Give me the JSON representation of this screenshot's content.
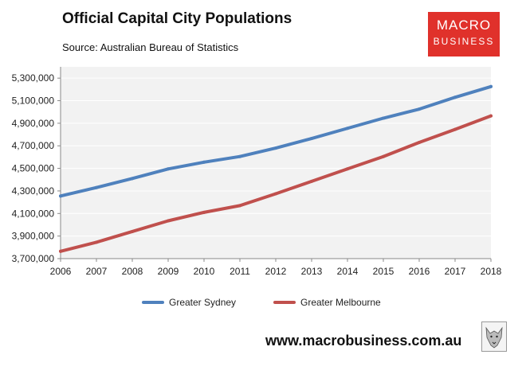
{
  "header": {
    "title": "Official Capital City Populations",
    "source": "Source: Australian Bureau of Statistics"
  },
  "logo": {
    "line1": "MACRO",
    "line2": "BUSINESS",
    "color": "#e0312b"
  },
  "footer": {
    "url": "www.macrobusiness.com.au"
  },
  "chart_data": {
    "type": "line",
    "title": "Official Capital City Populations",
    "xlabel": "",
    "ylabel": "",
    "categories": [
      "2006",
      "2007",
      "2008",
      "2009",
      "2010",
      "2011",
      "2012",
      "2013",
      "2014",
      "2015",
      "2016",
      "2017",
      "2018"
    ],
    "ylim": [
      3700000,
      5400000
    ],
    "yticks": [
      3700000,
      3900000,
      4100000,
      4300000,
      4500000,
      4700000,
      4900000,
      5100000,
      5300000
    ],
    "ytick_labels": [
      "3,700,000",
      "3,900,000",
      "4,100,000",
      "4,300,000",
      "4,500,000",
      "4,700,000",
      "4,900,000",
      "5,100,000",
      "5,300,000"
    ],
    "legend_position": "bottom",
    "series": [
      {
        "name": "Greater Sydney",
        "color": "#4f81bd",
        "values": [
          4255000,
          4330000,
          4410000,
          4495000,
          4555000,
          4605000,
          4680000,
          4765000,
          4855000,
          4945000,
          5025000,
          5130000,
          5225000
        ]
      },
      {
        "name": "Greater Melbourne",
        "color": "#c0504d",
        "values": [
          3765000,
          3845000,
          3940000,
          4035000,
          4110000,
          4170000,
          4275000,
          4385000,
          4495000,
          4605000,
          4730000,
          4845000,
          4965000
        ]
      }
    ]
  }
}
